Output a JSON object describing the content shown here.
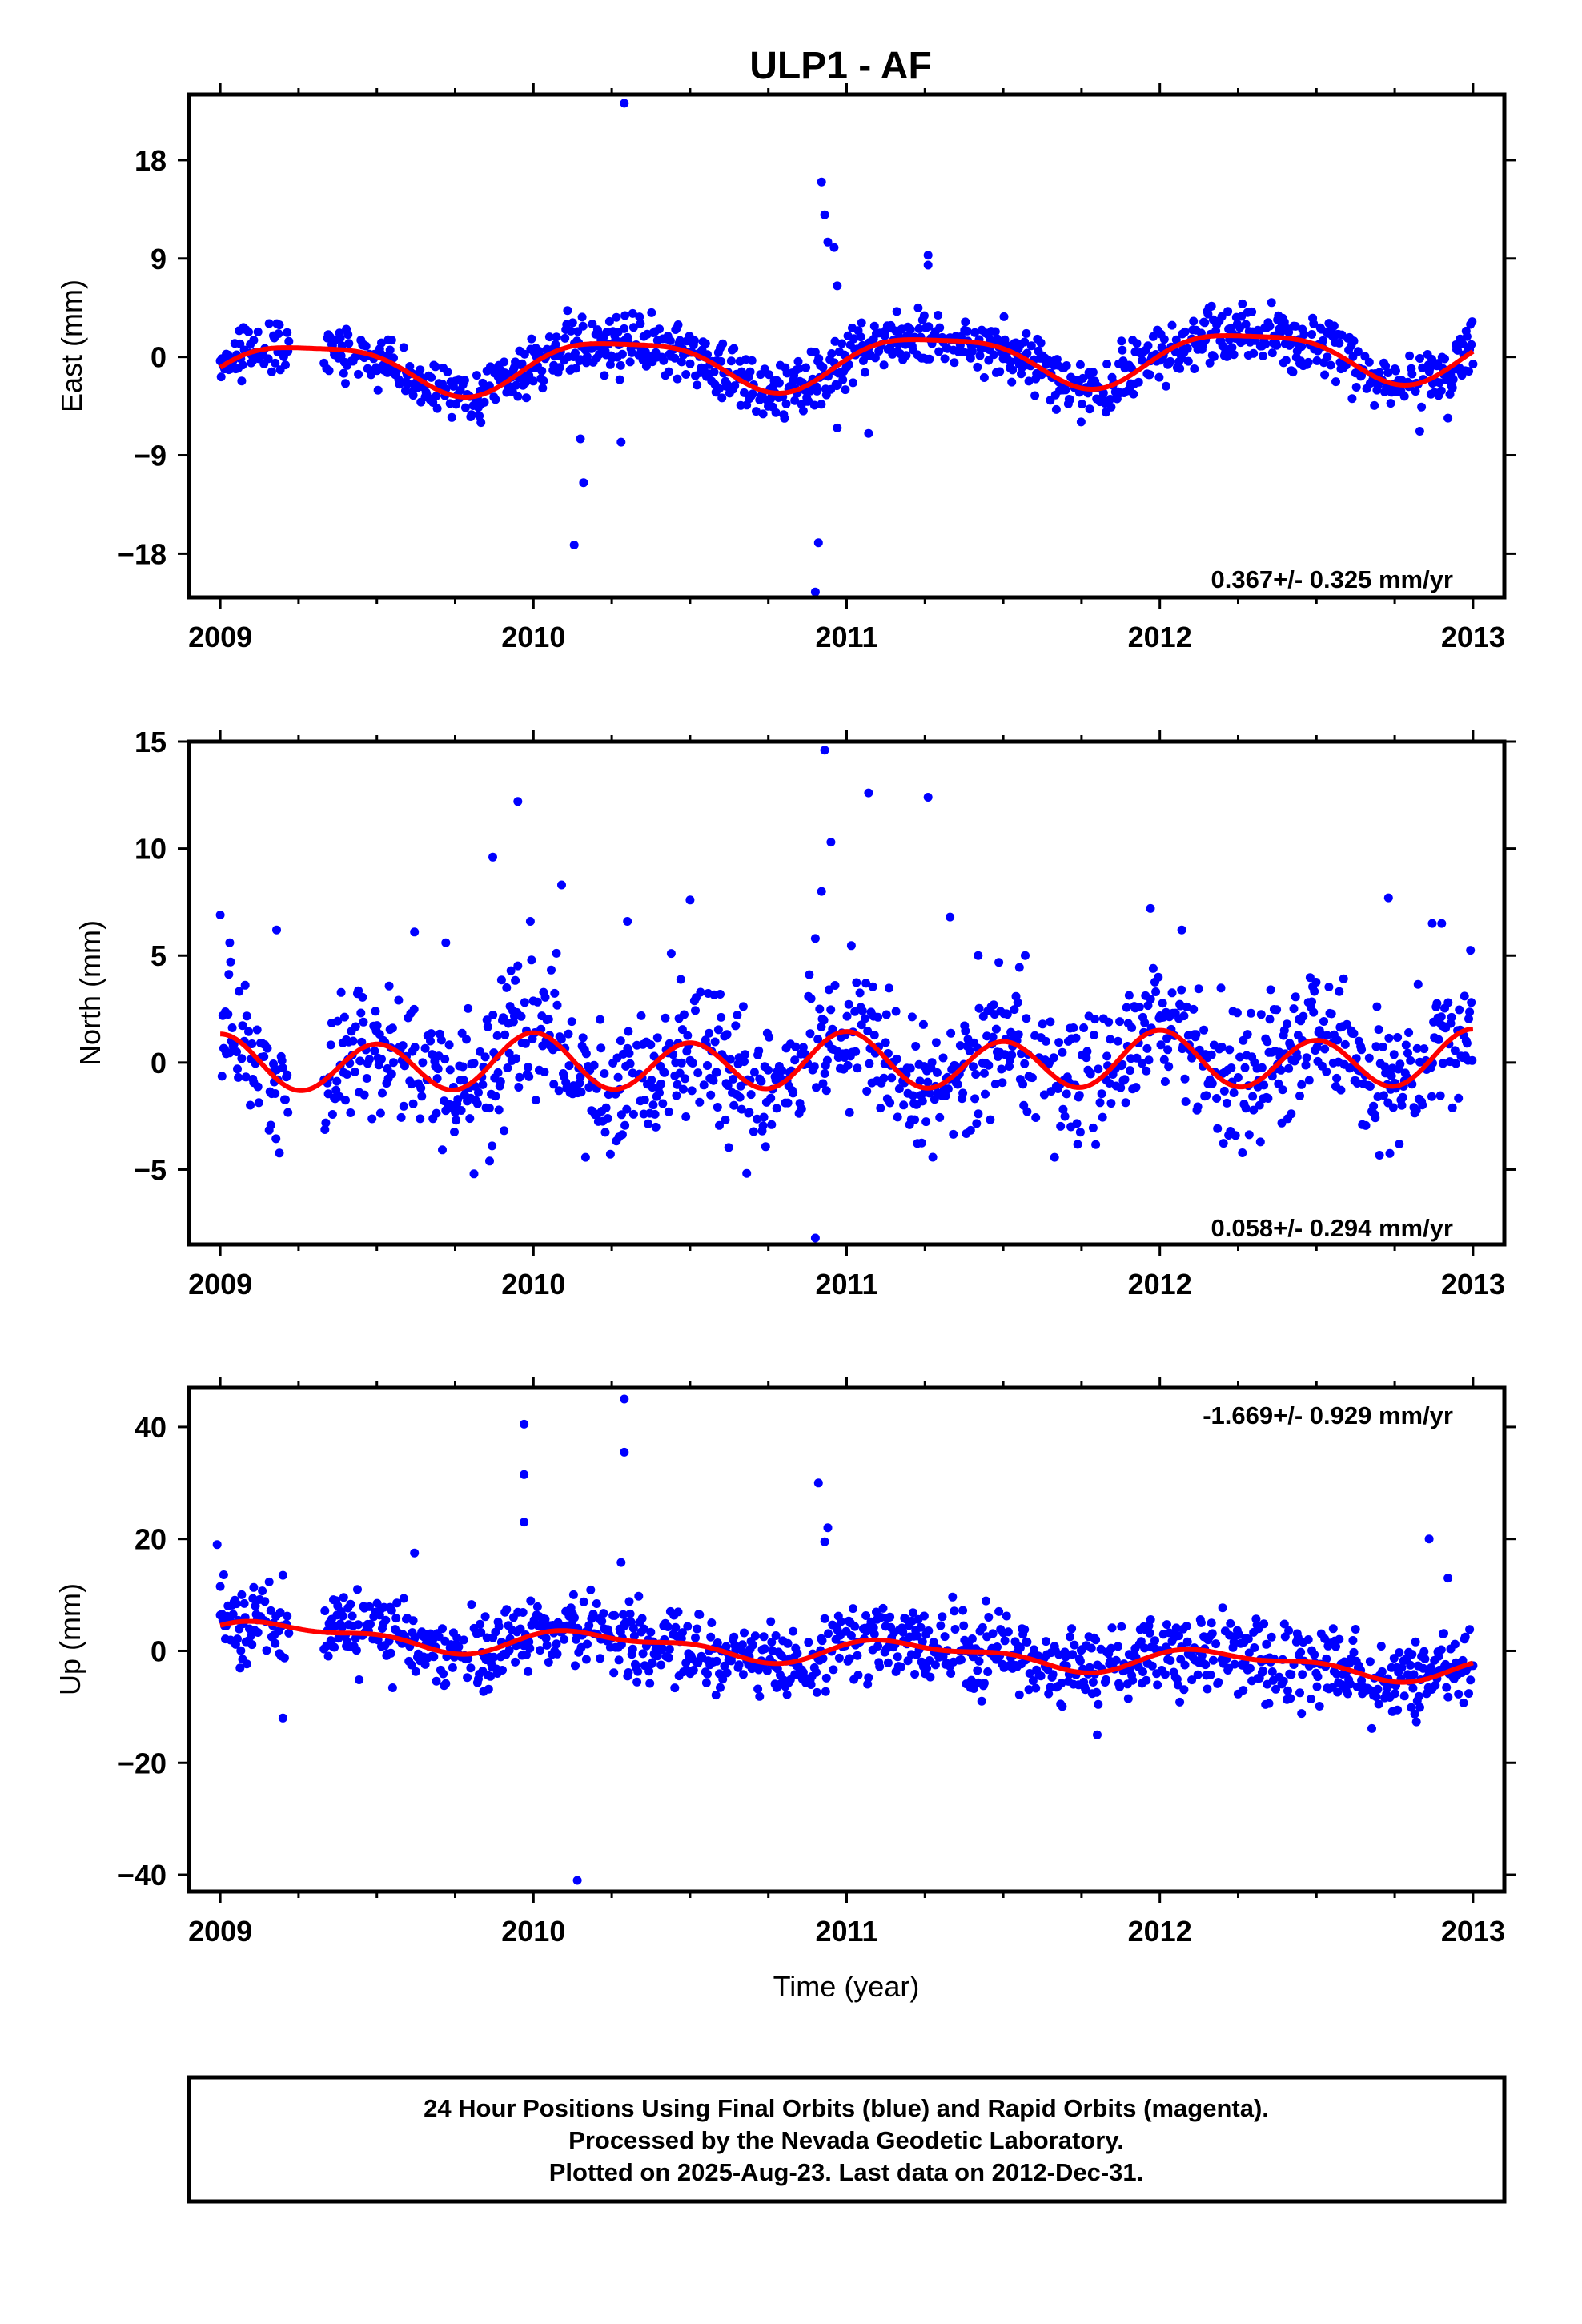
{
  "colors": {
    "points": "#0000ff",
    "model": "#ff0000",
    "frame": "#000000"
  },
  "chart_data": [
    {
      "type": "scatter",
      "title": "ULP1 - AF",
      "ylabel": "East (mm)",
      "xlabel": "",
      "xlim": [
        2008.9,
        2013.1
      ],
      "ylim": [
        -22,
        24
      ],
      "xticks": [
        2009,
        2010,
        2011,
        2012,
        2013
      ],
      "yticks": [
        -18,
        -9,
        0,
        9,
        18
      ],
      "ytick_labels": [
        "−18",
        "−9",
        "0",
        "9",
        "18"
      ],
      "rate_text": "0.367+/- 0.325 mm/yr",
      "series": [
        {
          "marker": "points",
          "model": {
            "offset": -0.33,
            "trend": 0.367,
            "annual_sin": 2.3,
            "annual_cos": -0.4,
            "semi_sin": 0.3,
            "semi_cos": 0.5
          },
          "noise": 1.3,
          "outliers": [
            [
              2010.29,
              23.2
            ],
            [
              2010.16,
              -11.5
            ],
            [
              2010.13,
              -17.2
            ],
            [
              2010.15,
              -7.5
            ],
            [
              2010.28,
              -7.8
            ],
            [
              2010.92,
              16.0
            ],
            [
              2010.93,
              13.0
            ],
            [
              2010.94,
              10.5
            ],
            [
              2010.96,
              10.0
            ],
            [
              2010.97,
              6.5
            ],
            [
              2010.91,
              -17.0
            ],
            [
              2010.9,
              -21.5
            ],
            [
              2010.97,
              -6.5
            ],
            [
              2011.07,
              -7.0
            ],
            [
              2011.26,
              9.3
            ],
            [
              2011.26,
              8.4
            ],
            [
              2012.83,
              -6.8
            ],
            [
              2012.92,
              -5.6
            ]
          ]
        }
      ]
    },
    {
      "type": "scatter",
      "title": "",
      "ylabel": "North (mm)",
      "xlabel": "",
      "xlim": [
        2008.9,
        2013.1
      ],
      "ylim": [
        -8.5,
        15
      ],
      "xticks": [
        2009,
        2010,
        2011,
        2012,
        2013
      ],
      "yticks": [
        -5,
        0,
        5,
        10,
        15
      ],
      "ytick_labels": [
        "−5",
        "0",
        "5",
        "10",
        "15"
      ],
      "rate_text": "0.058+/- 0.294 mm/yr",
      "series": [
        {
          "marker": "points",
          "model": {
            "offset": 0.0,
            "trend": 0.058,
            "annual_sin": 0.0,
            "annual_cos": 0.25,
            "semi_sin": 0.0,
            "semi_cos": 1.2
          },
          "noise": 1.5,
          "outliers": [
            [
              2009.0,
              6.9
            ],
            [
              2009.03,
              5.6
            ],
            [
              2009.18,
              6.2
            ],
            [
              2009.62,
              6.1
            ],
            [
              2009.72,
              5.6
            ],
            [
              2009.87,
              9.6
            ],
            [
              2009.95,
              12.2
            ],
            [
              2009.99,
              6.6
            ],
            [
              2010.09,
              8.3
            ],
            [
              2010.3,
              6.6
            ],
            [
              2010.44,
              5.1
            ],
            [
              2010.5,
              7.6
            ],
            [
              2010.9,
              5.8
            ],
            [
              2010.93,
              14.6
            ],
            [
              2010.92,
              8.0
            ],
            [
              2010.95,
              10.3
            ],
            [
              2011.07,
              12.6
            ],
            [
              2011.26,
              12.4
            ],
            [
              2011.33,
              6.8
            ],
            [
              2011.42,
              5.0
            ],
            [
              2011.57,
              5.0
            ],
            [
              2011.97,
              7.2
            ],
            [
              2012.07,
              6.2
            ],
            [
              2012.73,
              7.7
            ],
            [
              2012.87,
              6.5
            ],
            [
              2012.9,
              6.5
            ],
            [
              2010.9,
              -8.2
            ],
            [
              2009.81,
              -5.2
            ],
            [
              2009.86,
              -4.6
            ]
          ]
        }
      ]
    },
    {
      "type": "scatter",
      "title": "",
      "ylabel": "Up (mm)",
      "xlabel": "Time (year)",
      "xlim": [
        2008.9,
        2013.1
      ],
      "ylim": [
        -43,
        47
      ],
      "xticks": [
        2009,
        2010,
        2011,
        2012,
        2013
      ],
      "yticks": [
        -40,
        -20,
        0,
        20,
        40
      ],
      "ytick_labels": [
        "−40",
        "−20",
        "0",
        "20",
        "40"
      ],
      "rate_text": "-1.669+/- 0.929 mm/yr",
      "series": [
        {
          "marker": "points",
          "model": {
            "offset": 0.0,
            "trend": -1.669,
            "annual_sin": 1.8,
            "annual_cos": 0.4,
            "semi_sin": 0.5,
            "semi_cos": 0.8
          },
          "noise": 3.5,
          "outliers": [
            [
              2008.99,
              19.0
            ],
            [
              2009.0,
              11.5
            ],
            [
              2009.2,
              13.5
            ],
            [
              2009.2,
              -12.0
            ],
            [
              2009.62,
              17.5
            ],
            [
              2009.97,
              40.5
            ],
            [
              2009.97,
              31.5
            ],
            [
              2009.97,
              23.0
            ],
            [
              2010.29,
              45.0
            ],
            [
              2010.29,
              35.5
            ],
            [
              2010.28,
              15.8
            ],
            [
              2010.91,
              30.0
            ],
            [
              2010.94,
              22.0
            ],
            [
              2010.93,
              19.5
            ],
            [
              2012.86,
              20.0
            ],
            [
              2012.92,
              13.0
            ],
            [
              2011.8,
              -15.0
            ],
            [
              2010.14,
              -41.0
            ]
          ]
        }
      ]
    }
  ],
  "caption": {
    "line1": "24 Hour Positions Using Final Orbits (blue) and Rapid Orbits (magenta).",
    "line2": "Processed by the Nevada Geodetic Laboratory.",
    "line3": "Plotted on 2025-Aug-23. Last data on 2012-Dec-31."
  }
}
